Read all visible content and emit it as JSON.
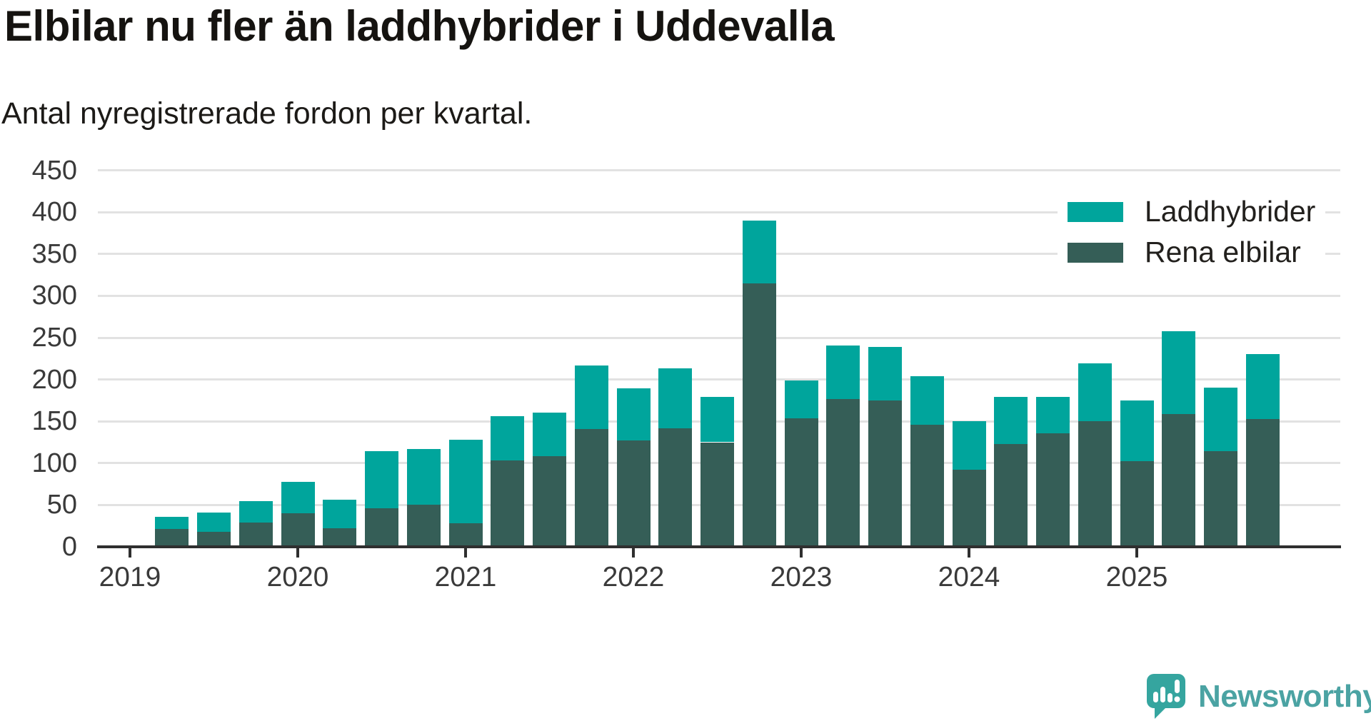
{
  "header": {
    "title": "Elbilar nu fler än laddhybrider i Uddevalla",
    "subtitle": "Antal nyregistrerade fordon per kvartal."
  },
  "legend": {
    "items": [
      {
        "label": "Laddhybrider",
        "color": "#00a59c"
      },
      {
        "label": "Rena elbilar",
        "color": "#355e57"
      }
    ]
  },
  "branding": {
    "name": "Newsworthy",
    "text_color": "#4ba3a3",
    "icon_color": "#35a59f"
  },
  "colors": {
    "background": "#ffffff",
    "grid": "#e2e2e2",
    "axis": "#2f2f2f",
    "tick_text": "#3a3a3a",
    "laddhybrider": "#00a59c",
    "rena_elbilar": "#355e57"
  },
  "chart_data": {
    "type": "bar",
    "stacked": true,
    "title": "Elbilar nu fler än laddhybrider i Uddevalla",
    "subtitle": "Antal nyregistrerade fordon per kvartal.",
    "categories": [
      "2019-Q2",
      "2019-Q3",
      "2019-Q4",
      "2020-Q1",
      "2020-Q2",
      "2020-Q3",
      "2020-Q4",
      "2021-Q1",
      "2021-Q2",
      "2021-Q3",
      "2021-Q4",
      "2022-Q1",
      "2022-Q2",
      "2022-Q3",
      "2022-Q4",
      "2023-Q1",
      "2023-Q2",
      "2023-Q3",
      "2023-Q4",
      "2024-Q1",
      "2024-Q2",
      "2024-Q3",
      "2024-Q4",
      "2025-Q1",
      "2025-Q2",
      "2025-Q3",
      "2025-Q4"
    ],
    "series": [
      {
        "name": "Rena elbilar",
        "color": "#355e57",
        "stack_position": "bottom",
        "values": [
          21,
          18,
          29,
          40,
          22,
          46,
          50,
          28,
          103,
          108,
          141,
          127,
          142,
          125,
          315,
          154,
          177,
          175,
          146,
          92,
          123,
          136,
          150,
          102,
          159,
          114,
          153
        ]
      },
      {
        "name": "Laddhybrider",
        "color": "#00a59c",
        "stack_position": "top",
        "values": [
          15,
          23,
          26,
          38,
          34,
          68,
          67,
          100,
          53,
          52,
          76,
          62,
          71,
          54,
          75,
          45,
          64,
          64,
          58,
          58,
          56,
          43,
          69,
          73,
          99,
          76,
          77
        ]
      }
    ],
    "x_year_ticks": [
      "2019",
      "2020",
      "2021",
      "2022",
      "2023",
      "2024",
      "2025"
    ],
    "y_ticks": [
      0,
      50,
      100,
      150,
      200,
      250,
      300,
      350,
      400,
      450
    ],
    "ylim": [
      0,
      450
    ],
    "grid": true,
    "legend_position": "top-right"
  }
}
